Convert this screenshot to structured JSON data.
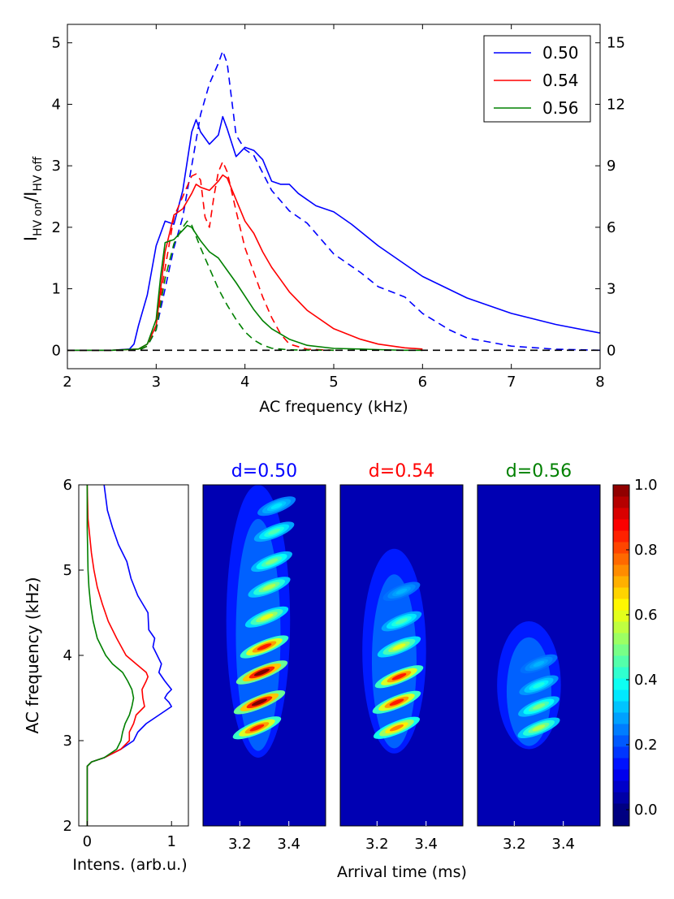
{
  "chart_data": [
    {
      "type": "line",
      "xlabel": "AC frequency (kHz)",
      "ylabel_main": "I",
      "ylabel_sub1": "HV on",
      "ylabel_mid": "/I",
      "ylabel_sub2": "HV off",
      "xlim": [
        2,
        8
      ],
      "ylim_left": [
        -0.3,
        5.3
      ],
      "ylim_right": [
        -0.9,
        15.9
      ],
      "xticks": [
        "2",
        "3",
        "4",
        "5",
        "6",
        "7",
        "8"
      ],
      "yticks_left": [
        "0",
        "1",
        "2",
        "3",
        "4",
        "5"
      ],
      "yticks_right": [
        "0",
        "3",
        "6",
        "9",
        "12",
        "15"
      ],
      "legend_position": "top-right",
      "colors": {
        "0.50": "#0000ff",
        "0.54": "#ff0000",
        "0.56": "#008000"
      },
      "series": [
        {
          "name": "0.50",
          "style": "solid",
          "axis": "left",
          "x": [
            2.0,
            2.5,
            2.7,
            2.75,
            2.8,
            2.9,
            3.0,
            3.1,
            3.2,
            3.3,
            3.4,
            3.45,
            3.5,
            3.6,
            3.7,
            3.75,
            3.8,
            3.9,
            4.0,
            4.1,
            4.2,
            4.3,
            4.4,
            4.5,
            4.6,
            4.7,
            4.8,
            5.0,
            5.2,
            5.5,
            6.0,
            6.5,
            7.0,
            7.5,
            8.0
          ],
          "y": [
            0.0,
            0.0,
            0.02,
            0.1,
            0.4,
            0.9,
            1.7,
            2.1,
            2.05,
            2.6,
            3.55,
            3.75,
            3.55,
            3.35,
            3.5,
            3.8,
            3.6,
            3.15,
            3.3,
            3.25,
            3.1,
            2.75,
            2.7,
            2.7,
            2.55,
            2.45,
            2.35,
            2.25,
            2.05,
            1.7,
            1.2,
            0.85,
            0.6,
            0.42,
            0.28
          ]
        },
        {
          "name": "0.50 dashed",
          "style": "dashed",
          "axis": "right",
          "x": [
            2.0,
            2.5,
            2.8,
            2.9,
            3.0,
            3.1,
            3.2,
            3.3,
            3.4,
            3.5,
            3.6,
            3.7,
            3.75,
            3.8,
            3.9,
            4.0,
            4.1,
            4.3,
            4.5,
            4.7,
            5.0,
            5.3,
            5.5,
            5.8,
            6.0,
            6.3,
            6.5,
            7.0,
            7.5,
            8.0
          ],
          "y": [
            0.0,
            0.0,
            0.0,
            0.2,
            1.0,
            3.0,
            5.0,
            6.5,
            9.0,
            11.5,
            13.0,
            14.0,
            14.6,
            14.0,
            10.5,
            9.8,
            9.5,
            7.8,
            6.8,
            6.2,
            4.7,
            3.8,
            3.1,
            2.6,
            1.8,
            1.0,
            0.6,
            0.2,
            0.05,
            0.0
          ]
        },
        {
          "name": "0.54",
          "style": "solid",
          "axis": "left",
          "x": [
            2.0,
            2.5,
            2.8,
            2.9,
            3.0,
            3.05,
            3.1,
            3.2,
            3.3,
            3.4,
            3.45,
            3.5,
            3.6,
            3.7,
            3.75,
            3.8,
            3.9,
            4.0,
            4.1,
            4.2,
            4.3,
            4.4,
            4.5,
            4.7,
            5.0,
            5.3,
            5.5,
            5.8,
            6.0
          ],
          "y": [
            0.0,
            0.0,
            0.02,
            0.1,
            0.4,
            1.0,
            1.6,
            2.2,
            2.3,
            2.55,
            2.7,
            2.65,
            2.6,
            2.75,
            2.85,
            2.8,
            2.45,
            2.1,
            1.9,
            1.6,
            1.35,
            1.15,
            0.95,
            0.65,
            0.35,
            0.18,
            0.1,
            0.04,
            0.02
          ]
        },
        {
          "name": "0.54 dashed",
          "style": "dashed",
          "axis": "right",
          "x": [
            2.0,
            2.5,
            2.8,
            2.9,
            3.0,
            3.1,
            3.2,
            3.3,
            3.4,
            3.45,
            3.5,
            3.55,
            3.6,
            3.65,
            3.7,
            3.75,
            3.8,
            3.9,
            4.0,
            4.1,
            4.2,
            4.3,
            4.4,
            4.5,
            4.7,
            5.0
          ],
          "y": [
            0.0,
            0.0,
            0.0,
            0.2,
            1.2,
            4.0,
            6.5,
            7.5,
            8.5,
            8.6,
            8.3,
            6.5,
            6.0,
            7.5,
            8.7,
            9.2,
            8.7,
            6.8,
            5.0,
            3.8,
            2.6,
            1.6,
            0.8,
            0.3,
            0.05,
            0.0
          ]
        },
        {
          "name": "0.56",
          "style": "solid",
          "axis": "left",
          "x": [
            2.0,
            2.5,
            2.8,
            2.9,
            3.0,
            3.05,
            3.1,
            3.2,
            3.3,
            3.35,
            3.4,
            3.5,
            3.6,
            3.7,
            3.8,
            3.9,
            4.0,
            4.1,
            4.2,
            4.3,
            4.5,
            4.7,
            5.0,
            5.3,
            5.5,
            5.8,
            6.0
          ],
          "y": [
            0.0,
            0.0,
            0.02,
            0.1,
            0.5,
            1.2,
            1.75,
            1.8,
            1.95,
            2.03,
            2.0,
            1.78,
            1.6,
            1.5,
            1.3,
            1.1,
            0.88,
            0.66,
            0.48,
            0.35,
            0.18,
            0.08,
            0.03,
            0.02,
            0.01,
            0.0,
            0.0
          ]
        },
        {
          "name": "0.56 dashed",
          "style": "dashed",
          "axis": "right",
          "x": [
            2.0,
            2.5,
            2.8,
            2.9,
            3.0,
            3.1,
            3.2,
            3.3,
            3.35,
            3.4,
            3.5,
            3.6,
            3.7,
            3.8,
            3.9,
            4.0,
            4.1,
            4.2,
            4.3,
            4.5,
            5.0
          ],
          "y": [
            0.0,
            0.0,
            0.0,
            0.2,
            1.0,
            3.5,
            5.2,
            6.0,
            6.3,
            6.1,
            5.0,
            4.0,
            3.0,
            2.2,
            1.5,
            0.9,
            0.5,
            0.25,
            0.1,
            0.02,
            0.0
          ]
        },
        {
          "name": "baseline",
          "style": "dashed",
          "axis": "left",
          "color": "#000000",
          "x": [
            2.0,
            8.0
          ],
          "y": [
            0.0,
            0.0
          ]
        }
      ]
    },
    {
      "type": "line",
      "xlabel": "Intens. (arb.u.)",
      "ylabel": "AC frequency (kHz)",
      "xlim": [
        -0.1,
        1.2
      ],
      "ylim": [
        2,
        6
      ],
      "xticks": [
        "0",
        "1"
      ],
      "yticks": [
        "2",
        "3",
        "4",
        "5",
        "6"
      ],
      "series": [
        {
          "name": "d=0.50",
          "frequency": [
            2.0,
            2.7,
            2.75,
            2.8,
            2.9,
            3.0,
            3.1,
            3.2,
            3.3,
            3.4,
            3.45,
            3.5,
            3.55,
            3.6,
            3.7,
            3.8,
            3.9,
            4.0,
            4.1,
            4.2,
            4.3,
            4.5,
            4.7,
            4.9,
            5.1,
            5.3,
            5.5,
            5.7,
            6.0
          ],
          "intensity": [
            0.0,
            0.0,
            0.05,
            0.2,
            0.4,
            0.55,
            0.6,
            0.7,
            0.85,
            1.0,
            0.97,
            0.92,
            0.95,
            1.0,
            0.92,
            0.85,
            0.88,
            0.83,
            0.78,
            0.8,
            0.73,
            0.72,
            0.6,
            0.52,
            0.47,
            0.37,
            0.3,
            0.24,
            0.2
          ]
        },
        {
          "name": "d=0.54",
          "frequency": [
            2.0,
            2.7,
            2.75,
            2.8,
            2.9,
            3.0,
            3.1,
            3.2,
            3.3,
            3.4,
            3.5,
            3.6,
            3.7,
            3.75,
            3.8,
            3.9,
            4.0,
            4.2,
            4.4,
            4.6,
            4.8,
            5.0,
            5.2,
            5.4,
            5.6,
            6.0
          ],
          "intensity": [
            0.0,
            0.0,
            0.05,
            0.2,
            0.4,
            0.5,
            0.5,
            0.55,
            0.58,
            0.68,
            0.66,
            0.65,
            0.7,
            0.72,
            0.7,
            0.58,
            0.46,
            0.35,
            0.25,
            0.18,
            0.12,
            0.08,
            0.05,
            0.03,
            0.01,
            0.0
          ]
        },
        {
          "name": "d=0.56",
          "frequency": [
            2.0,
            2.7,
            2.75,
            2.8,
            2.9,
            3.0,
            3.1,
            3.2,
            3.3,
            3.4,
            3.5,
            3.6,
            3.7,
            3.8,
            3.9,
            4.0,
            4.2,
            4.4,
            4.6,
            4.8,
            5.0,
            5.5,
            6.0
          ],
          "intensity": [
            0.0,
            0.0,
            0.05,
            0.2,
            0.35,
            0.4,
            0.42,
            0.45,
            0.5,
            0.53,
            0.55,
            0.53,
            0.48,
            0.42,
            0.3,
            0.22,
            0.12,
            0.07,
            0.04,
            0.02,
            0.01,
            0.0,
            0.0
          ]
        }
      ]
    },
    {
      "type": "heatmap",
      "xlabel": "Arrival time (ms)",
      "xlim": [
        3.05,
        3.55
      ],
      "ylim": [
        2,
        6
      ],
      "xticks": [
        "3.2",
        "3.4"
      ],
      "colorbar": {
        "range": [
          -0.05,
          1.0
        ],
        "ticks": [
          "0.0",
          "0.2",
          "0.4",
          "0.6",
          "0.8",
          "1.0"
        ]
      },
      "panels": [
        {
          "title": "d=0.50",
          "title_color": "#0000ff",
          "envelope": {
            "f_min": 2.8,
            "f_max": 6.0,
            "t_center_low": 3.2,
            "t_center_high": 3.35
          },
          "peaks": [
            {
              "f": 3.15,
              "t": 3.27,
              "v": 0.85
            },
            {
              "f": 3.45,
              "t": 3.28,
              "v": 1.0
            },
            {
              "f": 3.8,
              "t": 3.29,
              "v": 1.0
            },
            {
              "f": 4.1,
              "t": 3.3,
              "v": 0.85
            },
            {
              "f": 4.45,
              "t": 3.31,
              "v": 0.6
            },
            {
              "f": 4.8,
              "t": 3.32,
              "v": 0.55
            },
            {
              "f": 5.1,
              "t": 3.33,
              "v": 0.5
            },
            {
              "f": 5.45,
              "t": 3.34,
              "v": 0.45
            },
            {
              "f": 5.75,
              "t": 3.35,
              "v": 0.35
            }
          ]
        },
        {
          "title": "d=0.54",
          "title_color": "#ff0000",
          "envelope": {
            "f_min": 2.85,
            "f_max": 5.25,
            "t_center_low": 3.22,
            "t_center_high": 3.32
          },
          "peaks": [
            {
              "f": 3.15,
              "t": 3.28,
              "v": 0.75
            },
            {
              "f": 3.45,
              "t": 3.28,
              "v": 0.85
            },
            {
              "f": 3.75,
              "t": 3.29,
              "v": 0.85
            },
            {
              "f": 4.1,
              "t": 3.29,
              "v": 0.6
            },
            {
              "f": 4.4,
              "t": 3.3,
              "v": 0.45
            },
            {
              "f": 4.75,
              "t": 3.3,
              "v": 0.3
            }
          ]
        },
        {
          "title": "d=0.56",
          "title_color": "#008000",
          "envelope": {
            "f_min": 2.9,
            "f_max": 4.4,
            "t_center_low": 3.24,
            "t_center_high": 3.28
          },
          "peaks": [
            {
              "f": 3.15,
              "t": 3.3,
              "v": 0.55
            },
            {
              "f": 3.4,
              "t": 3.3,
              "v": 0.5
            },
            {
              "f": 3.65,
              "t": 3.3,
              "v": 0.4
            },
            {
              "f": 3.9,
              "t": 3.3,
              "v": 0.3
            }
          ]
        }
      ]
    }
  ]
}
